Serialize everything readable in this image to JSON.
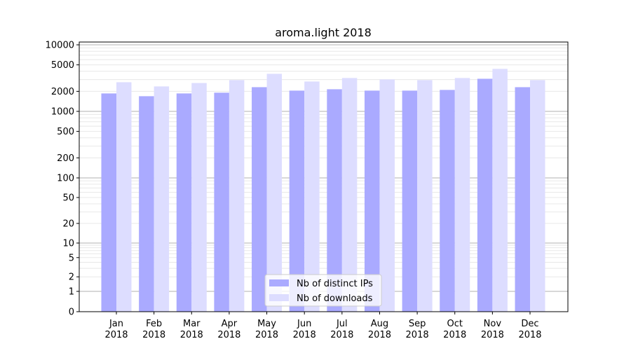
{
  "chart_data": {
    "type": "bar",
    "title": "aroma.light 2018",
    "xlabel": "",
    "ylabel": "",
    "yscale": "symlog",
    "ylim": [
      0,
      12000
    ],
    "grid": true,
    "legend_position": "bottom-center",
    "categories": [
      "Jan\n2018",
      "Feb\n2018",
      "Mar\n2018",
      "Apr\n2018",
      "May\n2018",
      "Jun\n2018",
      "Jul\n2018",
      "Aug\n2018",
      "Sep\n2018",
      "Oct\n2018",
      "Nov\n2018",
      "Dec\n2018"
    ],
    "y_ticks": [
      0,
      1,
      2,
      5,
      10,
      20,
      50,
      100,
      200,
      500,
      1000,
      2000,
      5000,
      10000
    ],
    "series": [
      {
        "name": "Nb of distinct IPs",
        "color": "#aaaaff",
        "values": [
          1860,
          1690,
          1860,
          1910,
          2310,
          2050,
          2150,
          2050,
          2050,
          2100,
          3090,
          2310
        ]
      },
      {
        "name": "Nb of downloads",
        "color": "#ddddff",
        "values": [
          2740,
          2370,
          2670,
          2950,
          3670,
          2810,
          3170,
          3020,
          2950,
          3170,
          4350,
          2950
        ]
      }
    ]
  }
}
